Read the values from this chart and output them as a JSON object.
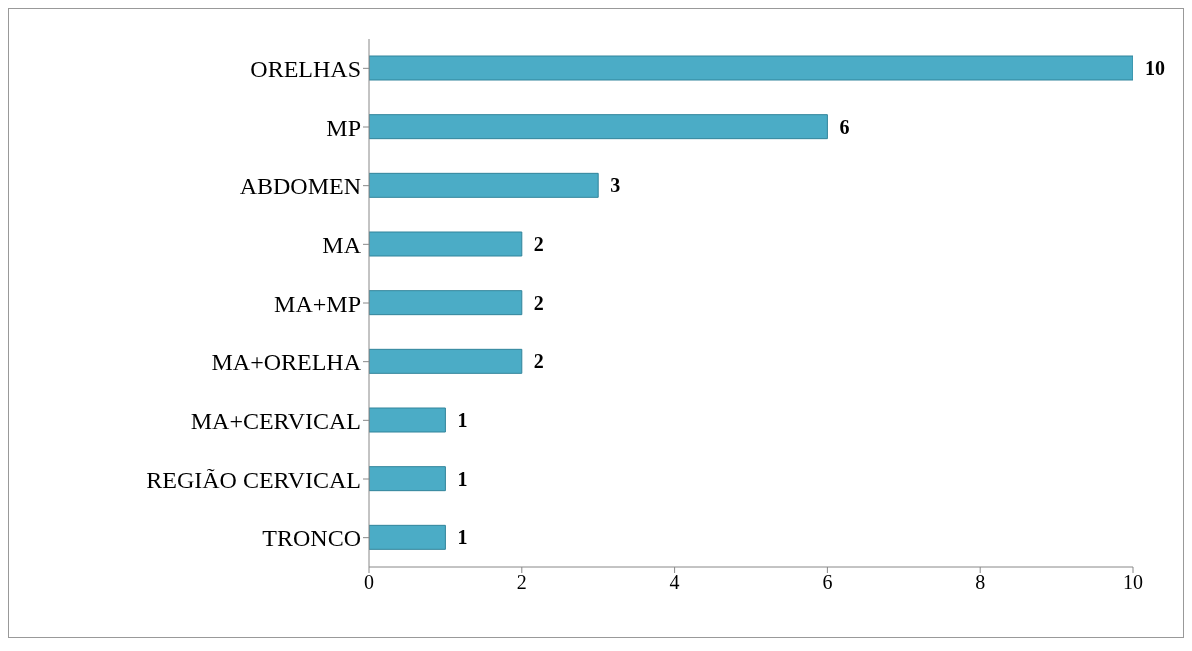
{
  "chart_data": {
    "type": "bar",
    "orientation": "horizontal",
    "categories": [
      "ORELHAS",
      "MP",
      "ABDOMEN",
      "MA",
      "MA+MP",
      "MA+ORELHA",
      "MA+CERVICAL",
      "REGIÃO CERVICAL",
      "TRONCO"
    ],
    "values": [
      10,
      6,
      3,
      2,
      2,
      2,
      1,
      1,
      1
    ],
    "color": "#4bacc6",
    "xlim": [
      0,
      10
    ],
    "xticks": [
      0,
      2,
      4,
      6,
      8,
      10
    ],
    "data_labels": true
  }
}
